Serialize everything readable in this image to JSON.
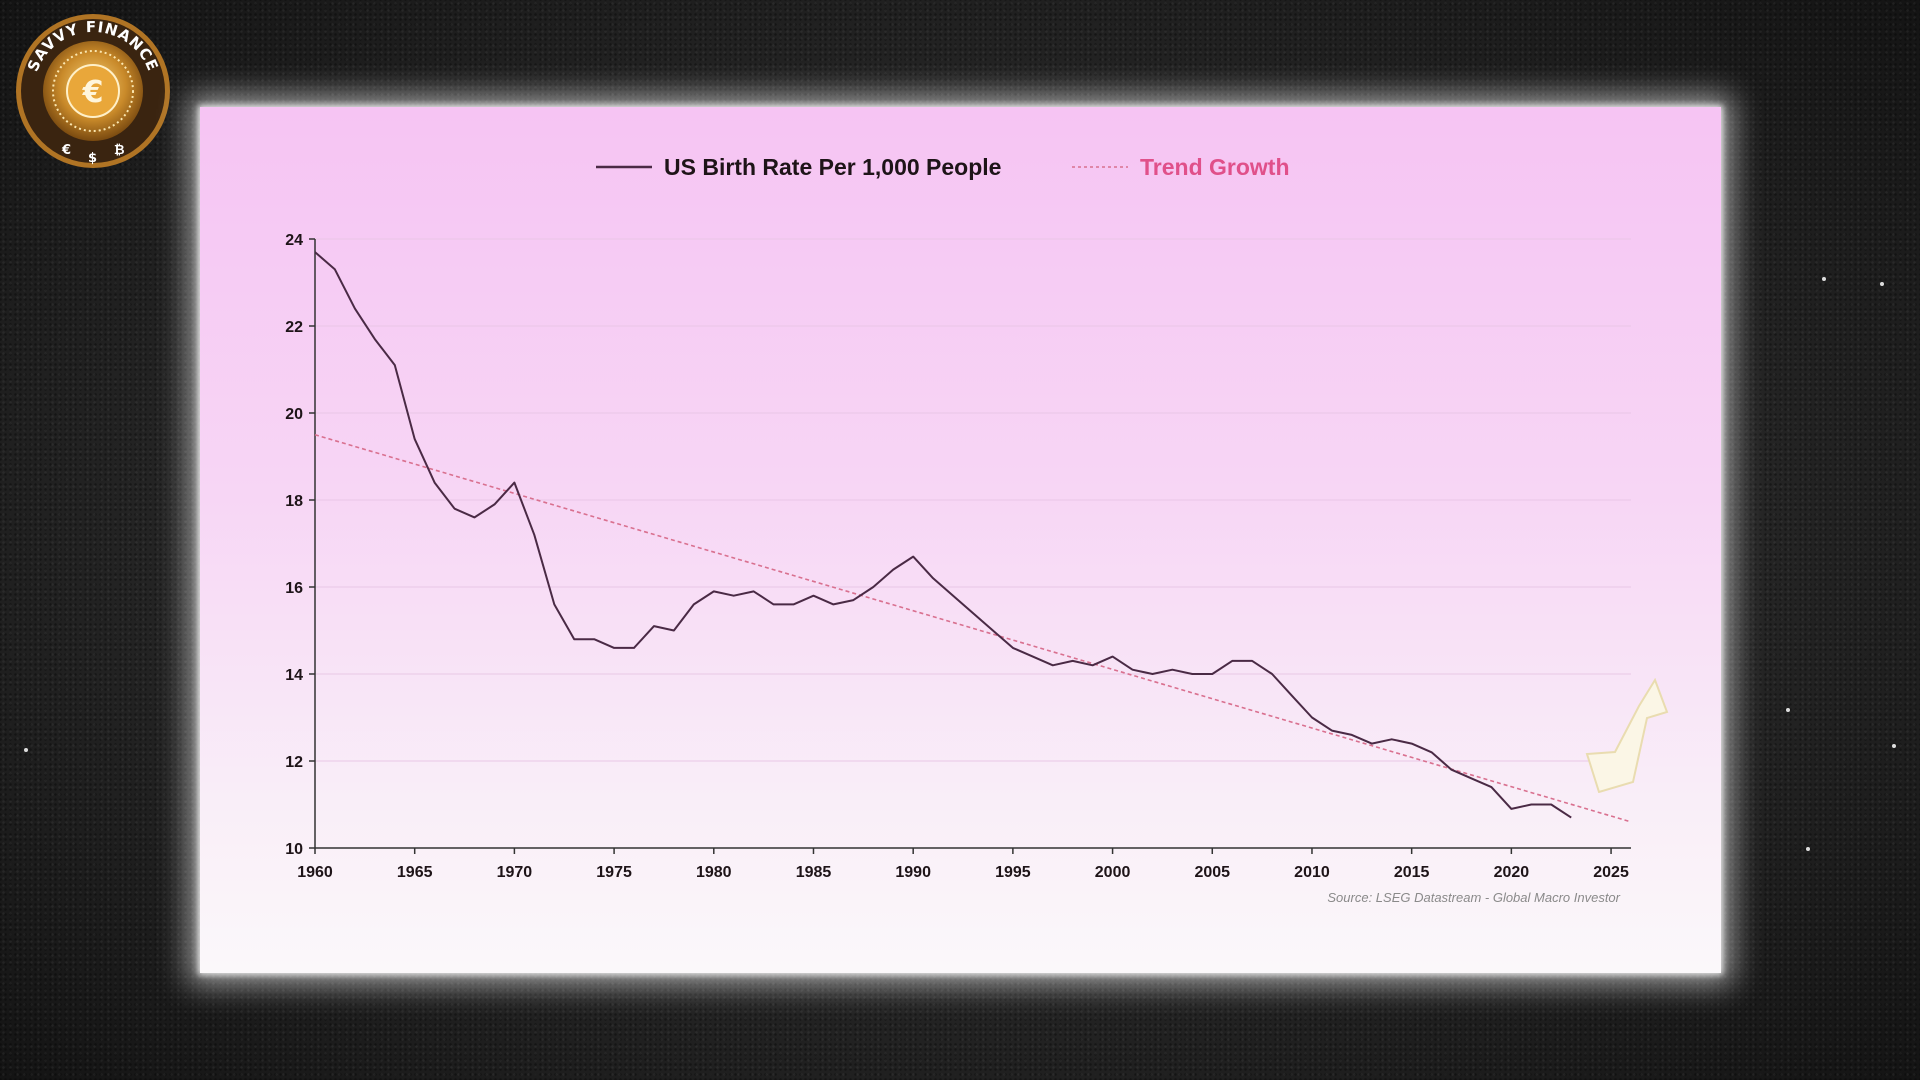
{
  "branding": {
    "logo_text": "SAVVY FINANCE",
    "logo_symbols": [
      "€",
      "$",
      "₿"
    ],
    "logo_center_symbol": "€"
  },
  "colors": {
    "series_line": "#4a2a45",
    "trend_line": "#d9708f",
    "trend_legend_text": "#e0508a",
    "arrow": "#fbf6e6"
  },
  "icons": [
    "savvy-finance-logo-icon",
    "arrow-pointer-icon"
  ],
  "chart_data": {
    "type": "line",
    "title": "",
    "xlabel": "",
    "ylabel": "",
    "xlim": [
      1960,
      2026
    ],
    "ylim": [
      10,
      24
    ],
    "x_ticks": [
      "1960",
      "1965",
      "1970",
      "1975",
      "1980",
      "1985",
      "1990",
      "1995",
      "2000",
      "2005",
      "2010",
      "2015",
      "2020",
      "2025"
    ],
    "y_ticks": [
      "10",
      "12",
      "14",
      "16",
      "18",
      "20",
      "22",
      "24"
    ],
    "grid": true,
    "legend_position": "top-center",
    "source": "Source: LSEG Datastream - Global Macro Investor",
    "series": [
      {
        "name": "US Birth Rate Per 1,000 People",
        "style": "solid",
        "x": [
          1960,
          1961,
          1962,
          1963,
          1964,
          1965,
          1966,
          1967,
          1968,
          1969,
          1970,
          1971,
          1972,
          1973,
          1974,
          1975,
          1976,
          1977,
          1978,
          1979,
          1980,
          1981,
          1982,
          1983,
          1984,
          1985,
          1986,
          1987,
          1988,
          1989,
          1990,
          1991,
          1992,
          1993,
          1994,
          1995,
          1996,
          1997,
          1998,
          1999,
          2000,
          2001,
          2002,
          2003,
          2004,
          2005,
          2006,
          2007,
          2008,
          2009,
          2010,
          2011,
          2012,
          2013,
          2014,
          2015,
          2016,
          2017,
          2018,
          2019,
          2020,
          2021,
          2022,
          2023
        ],
        "values": [
          23.7,
          23.3,
          22.4,
          21.7,
          21.1,
          19.4,
          18.4,
          17.8,
          17.6,
          17.9,
          18.4,
          17.2,
          15.6,
          14.8,
          14.8,
          14.6,
          14.6,
          15.1,
          15.0,
          15.6,
          15.9,
          15.8,
          15.9,
          15.6,
          15.6,
          15.8,
          15.6,
          15.7,
          16.0,
          16.4,
          16.7,
          16.2,
          15.8,
          15.4,
          15.0,
          14.6,
          14.4,
          14.2,
          14.3,
          14.2,
          14.4,
          14.1,
          14.0,
          14.1,
          14.0,
          14.0,
          14.3,
          14.3,
          14.0,
          13.5,
          13.0,
          12.7,
          12.6,
          12.4,
          12.5,
          12.4,
          12.2,
          11.8,
          11.6,
          11.4,
          10.9,
          11.0,
          11.0,
          10.7
        ]
      },
      {
        "name": "Trend Growth",
        "style": "dashed",
        "x": [
          1960,
          2026
        ],
        "values": [
          19.5,
          10.6
        ]
      }
    ]
  }
}
